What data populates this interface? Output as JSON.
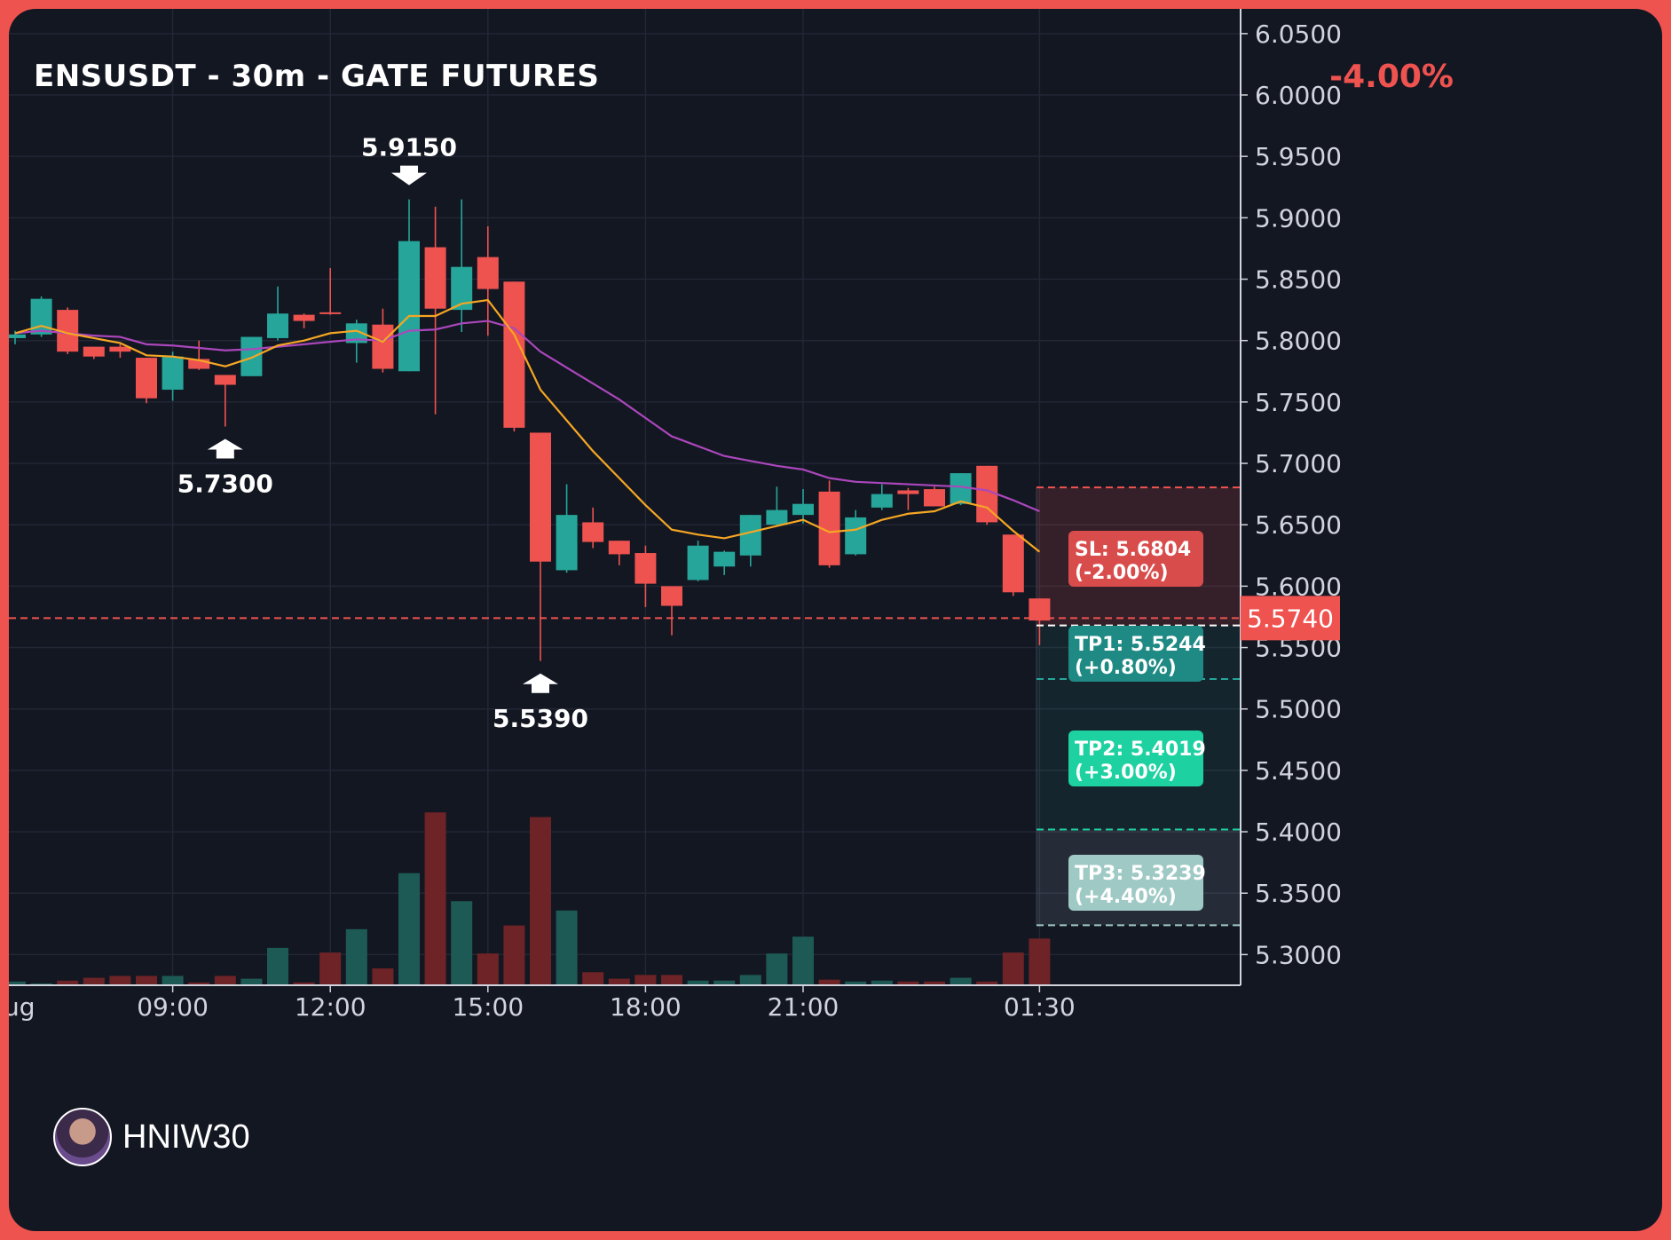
{
  "header": {
    "title": "ENSUSDT - 30m - GATE FUTURES",
    "change_pct": "-4.00%"
  },
  "brand": {
    "name": "HNIW30"
  },
  "colors": {
    "background": "#131722",
    "frame": "#ef5350",
    "up": "#26a69a",
    "down": "#ef5350",
    "ma_fast": "#f5a623",
    "ma_slow": "#ab47bc",
    "sl_box": "#d94c4c",
    "tp1_box": "#1f8a84",
    "tp2_box": "#1dd1a1",
    "tp3_box": "#9fc9c4"
  },
  "chart_data": {
    "type": "candlestick",
    "interval": "30m",
    "ylim": [
      5.275,
      6.06
    ],
    "y_ticks": [
      "6.0500",
      "6.0000",
      "5.9500",
      "5.9000",
      "5.8500",
      "5.8000",
      "5.7500",
      "5.7000",
      "5.6500",
      "5.6000",
      "5.5500",
      "5.5000",
      "5.4500",
      "5.4000",
      "5.3500",
      "5.3000"
    ],
    "x_labels": [
      {
        "index": 6,
        "label": "09:00"
      },
      {
        "index": 12,
        "label": "12:00"
      },
      {
        "index": 18,
        "label": "15:00"
      },
      {
        "index": 24,
        "label": "18:00"
      },
      {
        "index": 30,
        "label": "21:00"
      },
      {
        "index": 39,
        "label": "01:30"
      }
    ],
    "x_label_left_fragment": "ug",
    "candles": [
      {
        "o": 5.802,
        "h": 5.808,
        "l": 5.797,
        "c": 5.805,
        "v": 4
      },
      {
        "o": 5.805,
        "h": 5.836,
        "l": 5.803,
        "c": 5.834,
        "v": 2
      },
      {
        "o": 5.825,
        "h": 5.827,
        "l": 5.789,
        "c": 5.791,
        "v": 5
      },
      {
        "o": 5.795,
        "h": 5.795,
        "l": 5.785,
        "c": 5.787,
        "v": 8
      },
      {
        "o": 5.795,
        "h": 5.797,
        "l": 5.786,
        "c": 5.791,
        "v": 10
      },
      {
        "o": 5.786,
        "h": 5.786,
        "l": 5.749,
        "c": 5.753,
        "v": 10
      },
      {
        "o": 5.76,
        "h": 5.791,
        "l": 5.751,
        "c": 5.787,
        "v": 10
      },
      {
        "o": 5.785,
        "h": 5.8,
        "l": 5.776,
        "c": 5.777,
        "v": 3
      },
      {
        "o": 5.772,
        "h": 5.772,
        "l": 5.73,
        "c": 5.764,
        "v": 10
      },
      {
        "o": 5.771,
        "h": 5.803,
        "l": 5.771,
        "c": 5.803,
        "v": 7
      },
      {
        "o": 5.802,
        "h": 5.844,
        "l": 5.8,
        "c": 5.822,
        "v": 40
      },
      {
        "o": 5.821,
        "h": 5.822,
        "l": 5.81,
        "c": 5.816,
        "v": 3
      },
      {
        "o": 5.823,
        "h": 5.859,
        "l": 5.821,
        "c": 5.822,
        "v": 35
      },
      {
        "o": 5.798,
        "h": 5.817,
        "l": 5.782,
        "c": 5.814,
        "v": 60
      },
      {
        "o": 5.813,
        "h": 5.826,
        "l": 5.774,
        "c": 5.777,
        "v": 18
      },
      {
        "o": 5.775,
        "h": 5.915,
        "l": 5.775,
        "c": 5.881,
        "v": 120
      },
      {
        "o": 5.876,
        "h": 5.909,
        "l": 5.74,
        "c": 5.826,
        "v": 185
      },
      {
        "o": 5.825,
        "h": 5.915,
        "l": 5.807,
        "c": 5.86,
        "v": 90
      },
      {
        "o": 5.868,
        "h": 5.893,
        "l": 5.804,
        "c": 5.842,
        "v": 34
      },
      {
        "o": 5.848,
        "h": 5.848,
        "l": 5.726,
        "c": 5.729,
        "v": 64
      },
      {
        "o": 5.725,
        "h": 5.725,
        "l": 5.539,
        "c": 5.62,
        "v": 180
      },
      {
        "o": 5.613,
        "h": 5.683,
        "l": 5.611,
        "c": 5.658,
        "v": 80
      },
      {
        "o": 5.652,
        "h": 5.664,
        "l": 5.631,
        "c": 5.636,
        "v": 14
      },
      {
        "o": 5.637,
        "h": 5.637,
        "l": 5.617,
        "c": 5.626,
        "v": 7
      },
      {
        "o": 5.627,
        "h": 5.633,
        "l": 5.583,
        "c": 5.602,
        "v": 11
      },
      {
        "o": 5.6,
        "h": 5.6,
        "l": 5.56,
        "c": 5.584,
        "v": 11
      },
      {
        "o": 5.605,
        "h": 5.637,
        "l": 5.604,
        "c": 5.633,
        "v": 5
      },
      {
        "o": 5.616,
        "h": 5.629,
        "l": 5.609,
        "c": 5.628,
        "v": 5
      },
      {
        "o": 5.625,
        "h": 5.658,
        "l": 5.616,
        "c": 5.658,
        "v": 11
      },
      {
        "o": 5.65,
        "h": 5.681,
        "l": 5.649,
        "c": 5.662,
        "v": 34
      },
      {
        "o": 5.658,
        "h": 5.679,
        "l": 5.651,
        "c": 5.667,
        "v": 52
      },
      {
        "o": 5.677,
        "h": 5.686,
        "l": 5.615,
        "c": 5.617,
        "v": 6
      },
      {
        "o": 5.626,
        "h": 5.662,
        "l": 5.625,
        "c": 5.656,
        "v": 4
      },
      {
        "o": 5.664,
        "h": 5.683,
        "l": 5.662,
        "c": 5.675,
        "v": 5
      },
      {
        "o": 5.678,
        "h": 5.68,
        "l": 5.662,
        "c": 5.675,
        "v": 4
      },
      {
        "o": 5.679,
        "h": 5.681,
        "l": 5.666,
        "c": 5.665,
        "v": 4
      },
      {
        "o": 5.667,
        "h": 5.692,
        "l": 5.666,
        "c": 5.692,
        "v": 8
      },
      {
        "o": 5.698,
        "h": 5.698,
        "l": 5.65,
        "c": 5.652,
        "v": 4
      },
      {
        "o": 5.642,
        "h": 5.642,
        "l": 5.592,
        "c": 5.595,
        "v": 35
      },
      {
        "o": 5.59,
        "h": 5.59,
        "l": 5.552,
        "c": 5.572,
        "v": 50
      }
    ],
    "ma_fast": [
      5.806,
      5.812,
      5.806,
      5.802,
      5.798,
      5.788,
      5.787,
      5.784,
      5.779,
      5.786,
      5.796,
      5.8,
      5.806,
      5.808,
      5.799,
      5.82,
      5.82,
      5.83,
      5.833,
      5.805,
      5.76,
      5.735,
      5.71,
      5.688,
      5.666,
      5.646,
      5.642,
      5.639,
      5.644,
      5.649,
      5.654,
      5.644,
      5.646,
      5.654,
      5.659,
      5.661,
      5.669,
      5.664,
      5.645,
      5.628
    ],
    "ma_slow": [
      5.806,
      5.808,
      5.806,
      5.804,
      5.803,
      5.797,
      5.796,
      5.794,
      5.792,
      5.793,
      5.795,
      5.797,
      5.799,
      5.801,
      5.8,
      5.808,
      5.809,
      5.814,
      5.816,
      5.81,
      5.791,
      5.778,
      5.765,
      5.752,
      5.737,
      5.722,
      5.714,
      5.706,
      5.702,
      5.698,
      5.695,
      5.688,
      5.685,
      5.684,
      5.683,
      5.682,
      5.681,
      5.678,
      5.67,
      5.661
    ],
    "annotations": [
      {
        "label": "5.9150",
        "index": 15,
        "price": 5.915,
        "type": "high"
      },
      {
        "label": "5.7300",
        "index": 8,
        "price": 5.73,
        "type": "low"
      },
      {
        "label": "5.5390",
        "index": 20,
        "price": 5.539,
        "type": "low"
      }
    ],
    "current_price": {
      "value": 5.574,
      "label": "5.5740"
    },
    "entry_price": 5.568,
    "levels": [
      {
        "name": "SL",
        "price": 5.6804,
        "label_line1": "SL: 5.6804",
        "label_line2": "(-2.00%)"
      },
      {
        "name": "TP1",
        "price": 5.5244,
        "label_line1": "TP1: 5.5244",
        "label_line2": "(+0.80%)"
      },
      {
        "name": "TP2",
        "price": 5.4019,
        "label_line1": "TP2: 5.4019",
        "label_line2": "(+3.00%)"
      },
      {
        "name": "TP3",
        "price": 5.3239,
        "label_line1": "TP3: 5.3239",
        "label_line2": "(+4.40%)"
      }
    ]
  }
}
